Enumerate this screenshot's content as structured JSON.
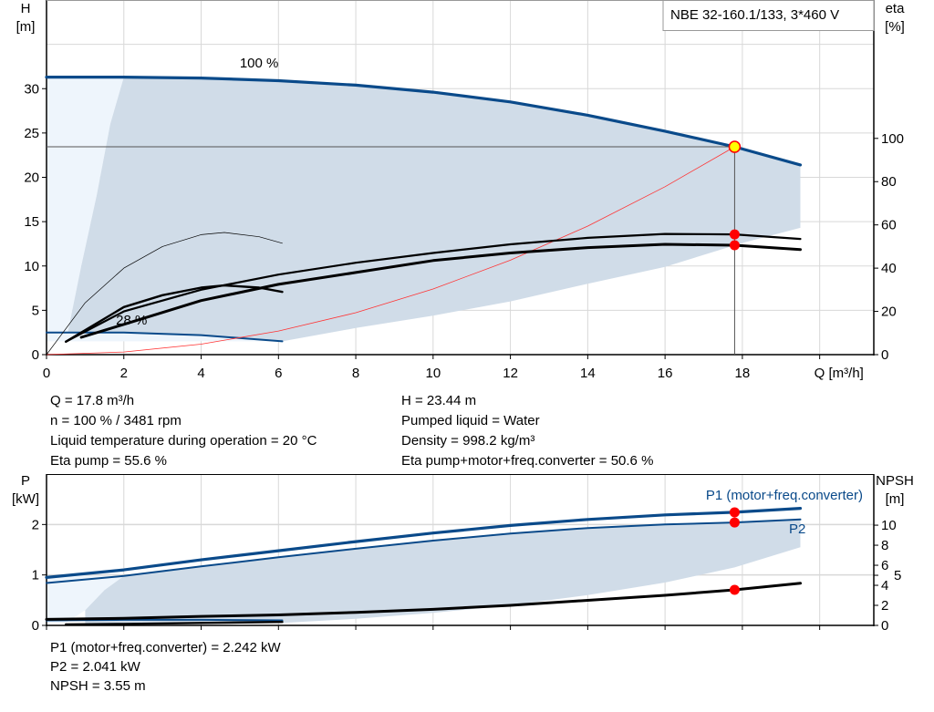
{
  "chart_data": [
    {
      "type": "line",
      "title": "NBE 32-160.1/133, 3*460 V",
      "xlabel": "Q [m³/h]",
      "ylabel_left": [
        "H",
        "[m]"
      ],
      "ylabel_right": [
        "eta",
        "[%]"
      ],
      "xlim": [
        0,
        21.4
      ],
      "ylim_left": [
        0,
        40
      ],
      "ylim_right": [
        0,
        164
      ],
      "x_ticks": [
        0,
        2,
        4,
        6,
        8,
        10,
        12,
        14,
        16,
        18
      ],
      "y_ticks_left": [
        0,
        5,
        10,
        15,
        20,
        25,
        30
      ],
      "y_ticks_right": [
        0,
        20,
        40,
        60,
        80,
        100
      ],
      "grid": true,
      "annotations": [
        "100 %",
        "28 %"
      ],
      "operating_area": {
        "upper": [
          [
            2,
            31.3
          ],
          [
            4,
            31.2
          ],
          [
            6,
            30.9
          ],
          [
            8,
            30.4
          ],
          [
            10,
            29.6
          ],
          [
            12,
            28.5
          ],
          [
            14,
            27.0
          ],
          [
            16,
            25.2
          ],
          [
            17.8,
            23.44
          ],
          [
            19.5,
            21.4
          ]
        ],
        "lower": [
          [
            19.5,
            14.3
          ],
          [
            18,
            12.6
          ],
          [
            16,
            9.9
          ],
          [
            14,
            8.0
          ],
          [
            12,
            6.0
          ],
          [
            10,
            4.4
          ],
          [
            8,
            3.0
          ],
          [
            6.1,
            1.5
          ]
        ],
        "left": [
          [
            6.1,
            1.5
          ],
          [
            4,
            2.2
          ],
          [
            2,
            2.5
          ],
          [
            0.55,
            2.5
          ],
          [
            0.9,
            10
          ],
          [
            1.3,
            18
          ],
          [
            1.65,
            26
          ],
          [
            2,
            31.3
          ]
        ]
      },
      "series": [
        {
          "role": "H 100 %",
          "axis": "left",
          "color": "#0a4a8a",
          "points": [
            [
              0,
              31.3
            ],
            [
              2,
              31.3
            ],
            [
              4,
              31.2
            ],
            [
              6,
              30.9
            ],
            [
              8,
              30.4
            ],
            [
              10,
              29.6
            ],
            [
              12,
              28.5
            ],
            [
              14,
              27.0
            ],
            [
              16,
              25.2
            ],
            [
              17.8,
              23.44
            ],
            [
              19.5,
              21.4
            ]
          ]
        },
        {
          "role": "H 28 %",
          "axis": "left",
          "color": "#0a4a8a",
          "points": [
            [
              0,
              2.5
            ],
            [
              2,
              2.5
            ],
            [
              4,
              2.2
            ],
            [
              6.1,
              1.5
            ]
          ]
        },
        {
          "role": "system curve",
          "axis": "left",
          "color": "#ff3333",
          "points": [
            [
              0,
              0
            ],
            [
              2,
              0.3
            ],
            [
              4,
              1.18
            ],
            [
              6,
              2.66
            ],
            [
              8,
              4.73
            ],
            [
              10,
              7.4
            ],
            [
              12,
              10.65
            ],
            [
              14,
              14.5
            ],
            [
              16,
              18.94
            ],
            [
              17.8,
              23.44
            ]
          ]
        },
        {
          "role": "eta pump",
          "axis": "right",
          "color": "#000000",
          "points": [
            [
              0.5,
              6
            ],
            [
              2,
              20
            ],
            [
              4,
              30
            ],
            [
              6,
              37
            ],
            [
              8,
              42.5
            ],
            [
              10,
              47
            ],
            [
              12,
              51
            ],
            [
              14,
              54
            ],
            [
              16,
              55.8
            ],
            [
              17.8,
              55.6
            ],
            [
              19.5,
              53.5
            ]
          ]
        },
        {
          "role": "eta pump+motor+freq.converter",
          "axis": "right",
          "color": "#000000",
          "points": [
            [
              0.9,
              8
            ],
            [
              2,
              14
            ],
            [
              4,
              25
            ],
            [
              6,
              32.5
            ],
            [
              8,
              38
            ],
            [
              10,
              43.5
            ],
            [
              12,
              47
            ],
            [
              14,
              49.5
            ],
            [
              16,
              51
            ],
            [
              17.8,
              50.6
            ],
            [
              19.5,
              48.6
            ]
          ]
        },
        {
          "role": "eta pump 28 %",
          "axis": "right",
          "color": "#000000",
          "points": [
            [
              0,
              0
            ],
            [
              1,
              24
            ],
            [
              2,
              40
            ],
            [
              3,
              50
            ],
            [
              4,
              55.5
            ],
            [
              4.6,
              56.5
            ],
            [
              5.5,
              54.5
            ],
            [
              6.1,
              51.5
            ]
          ]
        },
        {
          "role": "eta pump+motor 28 %",
          "axis": "right",
          "color": "#000000",
          "points": [
            [
              0.5,
              6
            ],
            [
              2,
              22
            ],
            [
              3,
              27.5
            ],
            [
              4,
              31
            ],
            [
              4.6,
              32
            ],
            [
              5.5,
              31
            ],
            [
              6.1,
              29
            ]
          ]
        }
      ],
      "duty_point": {
        "Q": 17.8,
        "H": 23.44,
        "eta_pump": 55.6,
        "eta_total": 50.6
      }
    },
    {
      "type": "line",
      "ylabel_left": [
        "P",
        "[kW]"
      ],
      "ylabel_right": [
        "NPSH",
        "[m]"
      ],
      "xlim": [
        0,
        21.4
      ],
      "ylim_left": [
        0,
        3.0
      ],
      "ylim_right": [
        0,
        15.1
      ],
      "y_ticks_left": [
        0,
        1,
        2
      ],
      "y_ticks_right": [
        0,
        2,
        4,
        5,
        6,
        8,
        10
      ],
      "grid": true,
      "operating_area": {
        "upper": [
          [
            2,
            0.98
          ],
          [
            4,
            1.17
          ],
          [
            6,
            1.35
          ],
          [
            8,
            1.52
          ],
          [
            10,
            1.68
          ],
          [
            12,
            1.82
          ],
          [
            14,
            1.93
          ],
          [
            16,
            2.0
          ],
          [
            17.8,
            2.041
          ],
          [
            19.5,
            2.1
          ]
        ],
        "lower": [
          [
            19.5,
            1.55
          ],
          [
            17.8,
            1.15
          ],
          [
            16,
            0.85
          ],
          [
            14,
            0.6
          ],
          [
            12,
            0.4
          ],
          [
            10,
            0.25
          ],
          [
            8,
            0.13
          ],
          [
            6.1,
            0.05
          ],
          [
            1,
            0.02
          ]
        ],
        "left": [
          [
            0.5,
            0.05
          ],
          [
            1,
            0.3
          ],
          [
            1.5,
            0.7
          ],
          [
            2,
            0.98
          ]
        ]
      },
      "series": [
        {
          "name": "P1 (motor+freq.converter)",
          "axis": "left",
          "color": "#0a4a8a",
          "points": [
            [
              0,
              0.95
            ],
            [
              2,
              1.1
            ],
            [
              4,
              1.3
            ],
            [
              6,
              1.48
            ],
            [
              8,
              1.66
            ],
            [
              10,
              1.83
            ],
            [
              12,
              1.98
            ],
            [
              14,
              2.1
            ],
            [
              16,
              2.19
            ],
            [
              17.8,
              2.242
            ],
            [
              19.5,
              2.32
            ]
          ]
        },
        {
          "name": "P2",
          "axis": "left",
          "color": "#0a4a8a",
          "points": [
            [
              0,
              0.84
            ],
            [
              2,
              0.98
            ],
            [
              4,
              1.17
            ],
            [
              6,
              1.35
            ],
            [
              8,
              1.52
            ],
            [
              10,
              1.68
            ],
            [
              12,
              1.82
            ],
            [
              14,
              1.93
            ],
            [
              16,
              2.0
            ],
            [
              17.8,
              2.041
            ],
            [
              19.5,
              2.1
            ]
          ]
        },
        {
          "role": "P 28 %",
          "axis": "left",
          "color": "#0a4a8a",
          "points": [
            [
              0,
              0.1
            ],
            [
              2,
              0.11
            ],
            [
              4,
              0.11
            ],
            [
              6.1,
              0.1
            ]
          ]
        },
        {
          "role": "NPSH",
          "axis": "right",
          "color": "#000000",
          "points": [
            [
              0,
              0.6
            ],
            [
              2,
              0.7
            ],
            [
              4,
              0.9
            ],
            [
              6,
              1.05
            ],
            [
              8,
              1.3
            ],
            [
              10,
              1.6
            ],
            [
              12,
              2.0
            ],
            [
              14,
              2.5
            ],
            [
              16,
              3.0
            ],
            [
              17.8,
              3.55
            ],
            [
              19.5,
              4.2
            ]
          ]
        },
        {
          "role": "NPSH 28 %",
          "axis": "right",
          "color": "#000000",
          "points": [
            [
              0.5,
              0.1
            ],
            [
              2,
              0.15
            ],
            [
              4,
              0.25
            ],
            [
              6.1,
              0.35
            ]
          ]
        }
      ],
      "duty_point": {
        "Q": 17.8,
        "P1": 2.242,
        "P2": 2.041,
        "NPSH": 3.55
      }
    }
  ],
  "info_top": {
    "left": [
      "Q = 17.8 m³/h",
      "n = 100 % / 3481 rpm",
      "Liquid temperature during operation = 20 °C",
      "Eta pump = 55.6 %"
    ],
    "right": [
      "H = 23.44 m",
      "Pumped liquid = Water",
      "Density = 998.2 kg/m³",
      "Eta pump+motor+freq.converter = 50.6 %"
    ]
  },
  "info_bottom": [
    "P1 (motor+freq.converter) = 2.242 kW",
    "P2 = 2.041 kW",
    "NPSH = 3.55 m"
  ],
  "colors": {
    "curve_blue": "#0a4a8a",
    "area": "#d0dce8",
    "area_light": "#eef5fc",
    "duty_point": "#ff0000",
    "duty_marker": "#ffff00",
    "system_curve": "#ff3333"
  }
}
